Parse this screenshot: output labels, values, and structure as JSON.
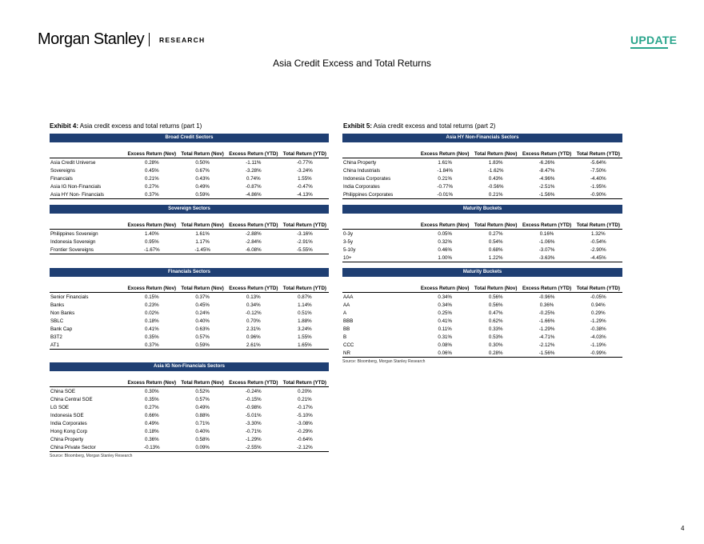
{
  "header": {
    "logo_text": "Morgan Stanley",
    "research_label": "RESEARCH",
    "badge": "UPDATE",
    "accent_color": "#2aa58c",
    "bar_color": "#1f3f73"
  },
  "page_title": "Asia Credit Excess and Total Returns",
  "page_number": "4",
  "columns": [
    "Excess Return (Nov)",
    "Total Return (Nov)",
    "Excess Return (YTD)",
    "Total Return (YTD)"
  ],
  "exhibits": [
    {
      "label": "Exhibit 4:",
      "title": "Asia credit excess and total returns (part 1)",
      "source": "Source: Bloomberg, Morgan Stanley Research",
      "tables": [
        {
          "section": "Broad Credit Sectors",
          "rows": [
            [
              "Asia Credit Universe",
              "0.28%",
              "0.50%",
              "-1.11%",
              "-0.77%"
            ],
            [
              "Sovereigns",
              "0.45%",
              "0.67%",
              "-3.28%",
              "-3.24%"
            ],
            [
              "Financials",
              "0.21%",
              "0.43%",
              "0.74%",
              "1.55%"
            ],
            [
              "Asia IG Non-Financials",
              "0.27%",
              "0.49%",
              "-0.87%",
              "-0.47%"
            ],
            [
              "Asia HY Non- Financials",
              "0.37%",
              "0.59%",
              "-4.86%",
              "-4.13%"
            ]
          ]
        },
        {
          "section": "Sovereign Sectors",
          "rows": [
            [
              "Philippines Sovereign",
              "1.40%",
              "1.61%",
              "-2.88%",
              "-3.16%"
            ],
            [
              "Indonesia Sovereign",
              "0.95%",
              "1.17%",
              "-2.84%",
              "-2.91%"
            ],
            [
              "Frontier Sovereigns",
              "-1.67%",
              "-1.45%",
              "-6.08%",
              "-5.55%"
            ]
          ]
        },
        {
          "section": "Financials Sectors",
          "rows": [
            [
              "Senior Financials",
              "0.15%",
              "0.37%",
              "0.13%",
              "0.87%"
            ],
            [
              "Banks",
              "0.23%",
              "0.45%",
              "0.34%",
              "1.14%"
            ],
            [
              "Non Banks",
              "0.02%",
              "0.24%",
              "-0.12%",
              "0.51%"
            ],
            [
              "SBLC",
              "0.18%",
              "0.40%",
              "0.70%",
              "1.88%"
            ],
            [
              "Bank Cap",
              "0.41%",
              "0.63%",
              "2.31%",
              "3.24%"
            ],
            [
              "B3T2",
              "0.35%",
              "0.57%",
              "0.96%",
              "1.55%"
            ],
            [
              "AT1",
              "0.37%",
              "0.59%",
              "2.61%",
              "1.65%"
            ]
          ]
        },
        {
          "section": "Asia IG Non-Financials Sectors",
          "rows": [
            [
              "China SOE",
              "0.30%",
              "0.52%",
              "-0.24%",
              "0.20%"
            ],
            [
              "China Central SOE",
              "0.35%",
              "0.57%",
              "-0.15%",
              "0.21%"
            ],
            [
              "LG SOE",
              "0.27%",
              "0.49%",
              "-0.98%",
              "-0.17%"
            ],
            [
              "Indonesia SOE",
              "0.66%",
              "0.88%",
              "-5.01%",
              "-5.10%"
            ],
            [
              "India Corporates",
              "0.49%",
              "0.71%",
              "-3.30%",
              "-3.08%"
            ],
            [
              "Hong Kong Corp",
              "0.18%",
              "0.40%",
              "-0.71%",
              "-0.29%"
            ],
            [
              "China Property",
              "0.36%",
              "0.58%",
              "-1.29%",
              "-0.64%"
            ],
            [
              "China Private Sector",
              "-0.13%",
              "0.09%",
              "-2.55%",
              "-2.12%"
            ]
          ]
        }
      ]
    },
    {
      "label": "Exhibit 5:",
      "title": "Asia credit excess and total returns (part 2)",
      "source": "Source: Bloomberg, Morgan Stanley Research",
      "tables": [
        {
          "section": "Asia HY Non-Financials Sectors",
          "rows": [
            [
              "China Property",
              "1.61%",
              "1.83%",
              "-6.26%",
              "-5.64%"
            ],
            [
              "China Industrials",
              "-1.84%",
              "-1.62%",
              "-8.47%",
              "-7.50%"
            ],
            [
              "Indonesia Corporates",
              "0.21%",
              "0.43%",
              "-4.96%",
              "-4.40%"
            ],
            [
              "India Corporates",
              "-0.77%",
              "-0.56%",
              "-2.51%",
              "-1.95%"
            ],
            [
              "Philippines Corporates",
              "-0.01%",
              "0.21%",
              "-1.56%",
              "-0.90%"
            ]
          ]
        },
        {
          "section": "Maturity Buckets",
          "rows": [
            [
              "0-3y",
              "0.05%",
              "0.27%",
              "0.16%",
              "1.32%"
            ],
            [
              "3-5y",
              "0.32%",
              "0.54%",
              "-1.06%",
              "-0.54%"
            ],
            [
              "5-10y",
              "0.46%",
              "0.68%",
              "-3.07%",
              "-2.90%"
            ],
            [
              "10+",
              "1.00%",
              "1.22%",
              "-3.63%",
              "-4.45%"
            ]
          ]
        },
        {
          "section": "Maturity Buckets",
          "rows": [
            [
              "AAA",
              "0.34%",
              "0.56%",
              "-0.96%",
              "-0.05%"
            ],
            [
              "AA",
              "0.34%",
              "0.56%",
              "0.36%",
              "0.94%"
            ],
            [
              "A",
              "0.25%",
              "0.47%",
              "-0.25%",
              "0.29%"
            ],
            [
              "BBB",
              "0.41%",
              "0.62%",
              "-1.66%",
              "-1.29%"
            ],
            [
              "BB",
              "0.11%",
              "0.33%",
              "-1.29%",
              "-0.38%"
            ],
            [
              "B",
              "0.31%",
              "0.53%",
              "-4.71%",
              "-4.03%"
            ],
            [
              "CCC",
              "0.08%",
              "0.30%",
              "-2.12%",
              "-1.19%"
            ],
            [
              "NR",
              "0.06%",
              "0.28%",
              "-1.56%",
              "-0.99%"
            ]
          ]
        }
      ]
    }
  ]
}
